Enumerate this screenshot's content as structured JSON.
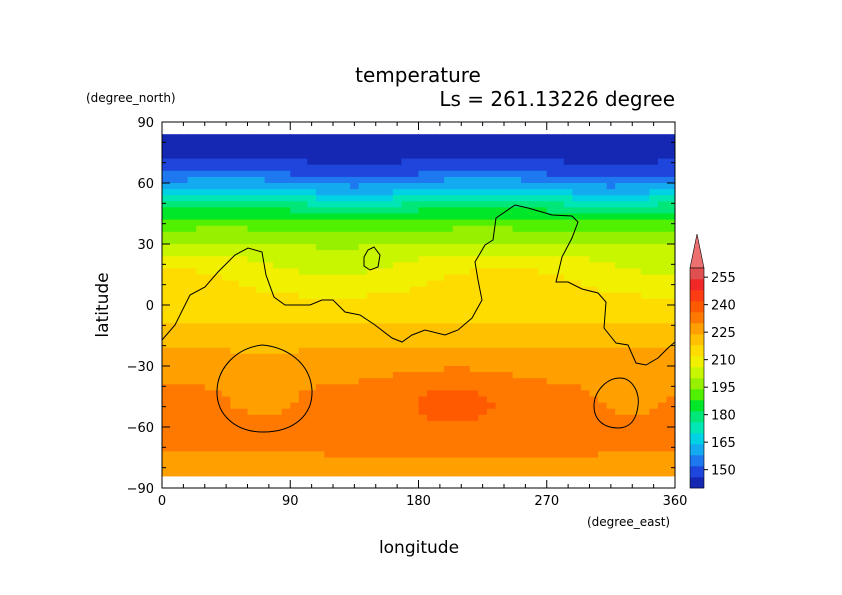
{
  "chart_data": {
    "type": "heatmap",
    "title": "temperature",
    "subtitle": "Ls = 261.13226 degree",
    "xlabel": "longitude",
    "ylabel": "latitude",
    "xunit": "(degree_east)",
    "yunit": "(degree_north)",
    "xlim": [
      0,
      360
    ],
    "ylim": [
      -90,
      90
    ],
    "data_lat_range": [
      -84,
      84
    ],
    "xticks": [
      0,
      90,
      180,
      270,
      360
    ],
    "yticks": [
      90,
      60,
      30,
      0,
      -30,
      -60,
      -90
    ],
    "colorbar": {
      "levels": [
        150,
        165,
        180,
        195,
        210,
        225,
        240,
        255
      ],
      "labels": [
        "150",
        "165",
        "180",
        "195",
        "210",
        "225",
        "240",
        "255"
      ],
      "colors": [
        "#1428b4",
        "#1e46dc",
        "#1e78f0",
        "#14aaf0",
        "#00d2e6",
        "#00e6b4",
        "#00e678",
        "#00e628",
        "#50f000",
        "#96f000",
        "#c8f500",
        "#f0f000",
        "#ffdc00",
        "#ffc000",
        "#ffa000",
        "#ff7800",
        "#ff5a00",
        "#ff3c14",
        "#f02828",
        "#e05050"
      ],
      "over_color": "#ec7070",
      "range": [
        140,
        260
      ]
    },
    "temperature_profile": {
      "latitudes": [
        84,
        75,
        66,
        57,
        48,
        39,
        30,
        21,
        12,
        3,
        -6,
        -15,
        -24,
        -33,
        -42,
        -51,
        -60,
        -69,
        -78,
        -84
      ],
      "values_kelvin": [
        141,
        143,
        150,
        163,
        180,
        192,
        200,
        207,
        211,
        214,
        217,
        220,
        225,
        228,
        231,
        232,
        232,
        231,
        229,
        229
      ]
    },
    "annotations": [
      {
        "label": "topography contour",
        "type": "contour"
      }
    ]
  }
}
